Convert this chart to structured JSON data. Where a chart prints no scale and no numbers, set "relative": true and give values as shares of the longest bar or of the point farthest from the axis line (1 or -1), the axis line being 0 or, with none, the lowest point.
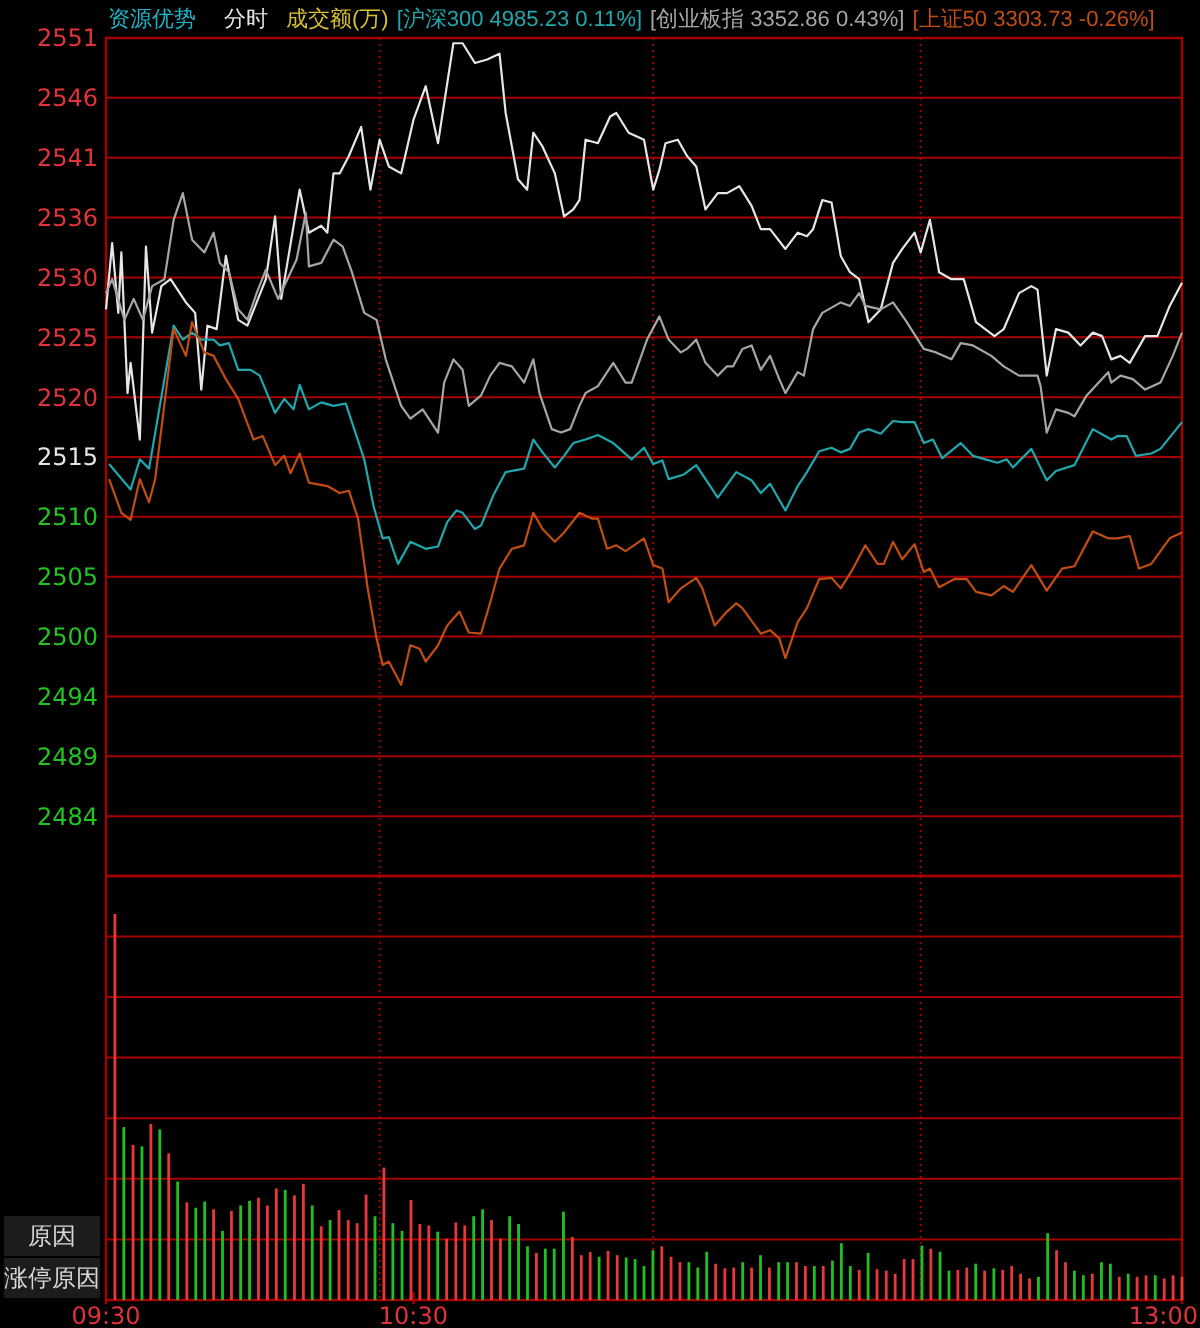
{
  "chart_data": [
    {
      "type": "line",
      "title": "资源优势",
      "subtitle": "分时",
      "annotations": [
        "成交额(万)"
      ],
      "legend": "top",
      "grid": "y",
      "tick_labels": "y",
      "xlim": [
        9.5,
        13
      ],
      "ylim": [
        2478.95,
        2551.05
      ],
      "yticks": [
        {
          "value": 2551.05,
          "label": "2551"
        },
        {
          "value": 2545.9,
          "label": "2546"
        },
        {
          "value": 2540.75,
          "label": "2541"
        },
        {
          "value": 2535.6,
          "label": "2536"
        },
        {
          "value": 2530.45,
          "label": "2530"
        },
        {
          "value": 2525.3,
          "label": "2525"
        },
        {
          "value": 2520.15,
          "label": "2520"
        },
        2515,
        {
          "value": 2509.85,
          "label": "2510"
        },
        {
          "value": 2504.7,
          "label": "2505"
        },
        {
          "value": 2499.55,
          "label": "2500"
        },
        {
          "value": 2494.4,
          "label": "2494"
        },
        {
          "value": 2489.25,
          "label": "2489"
        },
        {
          "value": 2484.1,
          "label": "2484"
        }
      ],
      "ref_lines": [
        {
          "axis": "x",
          "value": 10.39,
          "line_style": "dotted",
          "color": "#a00000"
        },
        {
          "axis": "x",
          "value": 11.28,
          "line_style": "dotted",
          "color": "#a00000"
        },
        {
          "axis": "x",
          "value": 12.15,
          "line_style": "dotted",
          "color": "#a00000"
        }
      ],
      "series": [
        {
          "color": "#e6e6e6",
          "x": [
            9.5,
            9.52,
            9.54,
            9.55,
            9.57,
            9.58,
            9.61,
            9.63,
            9.65,
            9.68,
            9.71,
            9.76,
            9.79,
            9.81,
            9.83,
            9.86,
            9.89,
            9.93,
            9.96,
            9.99,
            10.02,
            10.05,
            10.07,
            10.09,
            10.13,
            10.16,
            10.2,
            10.22,
            10.24,
            10.26,
            10.29,
            10.33,
            10.36,
            10.39,
            10.42,
            10.46,
            10.5,
            10.54,
            10.58,
            10.63,
            10.66,
            10.7,
            10.74,
            10.78,
            10.8,
            10.84,
            10.87,
            10.89,
            10.92,
            10.96,
            10.99,
            11.02,
            11.04,
            11.06,
            11.1,
            11.14,
            11.16,
            11.2,
            11.25,
            11.28,
            11.3,
            11.32,
            11.36,
            11.39,
            11.42,
            11.45,
            11.49,
            11.52,
            11.56,
            11.6,
            11.63,
            11.66,
            11.71,
            11.75,
            11.78,
            11.8,
            11.83,
            11.86,
            11.89,
            11.92,
            11.95,
            11.98,
            12.02,
            12.06,
            12.09,
            12.13,
            12.15,
            12.18,
            12.21,
            12.25,
            12.29,
            12.33,
            12.39,
            12.42,
            12.47,
            12.51,
            12.53,
            12.56,
            12.59,
            12.63,
            12.67,
            12.71,
            12.74,
            12.77,
            12.8,
            12.83,
            12.88,
            12.92,
            12.96,
            13
          ],
          "values": [
            2527.7,
            2533.4,
            2527.4,
            2532.6,
            2520.5,
            2523.1,
            2516.5,
            2533.1,
            2525.7,
            2529.7,
            2530.3,
            2528.3,
            2527.4,
            2520.8,
            2526.3,
            2526,
            2532.3,
            2526.8,
            2526.3,
            2528.3,
            2530.3,
            2535.7,
            2528.6,
            2531.7,
            2538,
            2534.3,
            2534.9,
            2534.3,
            2539.4,
            2539.4,
            2540.9,
            2543.4,
            2538,
            2542.3,
            2540,
            2539.4,
            2544,
            2546.9,
            2542,
            2550.6,
            2550.6,
            2548.9,
            2549.2,
            2549.7,
            2544.6,
            2538.9,
            2538,
            2542.9,
            2541.7,
            2539.4,
            2535.7,
            2536.3,
            2537.1,
            2542.3,
            2542,
            2544.3,
            2544.6,
            2542.9,
            2542.3,
            2538,
            2539.7,
            2542,
            2542.3,
            2540.9,
            2540,
            2536.3,
            2537.7,
            2537.7,
            2538.3,
            2536.6,
            2534.6,
            2534.6,
            2532.9,
            2534.3,
            2534,
            2534.6,
            2537.1,
            2536.9,
            2532.3,
            2530.9,
            2530.3,
            2526.6,
            2527.7,
            2531.7,
            2532.9,
            2534.3,
            2532.6,
            2535.4,
            2530.9,
            2530.3,
            2530.3,
            2526.6,
            2525.4,
            2526,
            2529.1,
            2529.7,
            2529.4,
            2522,
            2526,
            2525.7,
            2524.6,
            2525.7,
            2525.4,
            2523.4,
            2523.7,
            2523.1,
            2525.4,
            2525.4,
            2528,
            2530
          ]
        },
        {
          "name": "[沪深300 4985.23 0.11%]",
          "color": "#1fa8ad",
          "x": [
            9.51,
            9.58,
            9.61,
            9.64,
            9.72,
            9.75,
            9.78,
            9.81,
            9.85,
            9.87,
            9.9,
            9.93,
            9.97,
            10,
            10.05,
            10.08,
            10.11,
            10.13,
            10.16,
            10.2,
            10.24,
            10.28,
            10.34,
            10.37,
            10.4,
            10.42,
            10.45,
            10.49,
            10.54,
            10.58,
            10.61,
            10.64,
            10.66,
            10.7,
            10.72,
            10.76,
            10.8,
            10.86,
            10.89,
            10.92,
            10.96,
            10.99,
            11.02,
            11.06,
            11.1,
            11.15,
            11.21,
            11.25,
            11.28,
            11.31,
            11.33,
            11.38,
            11.42,
            11.49,
            11.55,
            11.6,
            11.63,
            11.66,
            11.71,
            11.75,
            11.78,
            11.82,
            11.86,
            11.89,
            11.92,
            11.95,
            11.98,
            12.02,
            12.06,
            12.09,
            12.13,
            12.16,
            12.19,
            12.22,
            12.28,
            12.32,
            12.36,
            12.4,
            12.43,
            12.45,
            12.51,
            12.56,
            12.59,
            12.65,
            12.71,
            12.77,
            12.79,
            12.82,
            12.85,
            12.9,
            12.93,
            13
          ],
          "values": [
            2514.4,
            2512.2,
            2514.8,
            2514,
            2526.3,
            2525.1,
            2525.7,
            2525.1,
            2525.1,
            2524.6,
            2524.8,
            2522.5,
            2522.5,
            2522,
            2518.8,
            2520,
            2519.1,
            2521.2,
            2519.1,
            2519.7,
            2519.4,
            2519.6,
            2514.8,
            2510.8,
            2508,
            2508.1,
            2505.8,
            2507.7,
            2507.1,
            2507.3,
            2509.4,
            2510.4,
            2510.2,
            2508.8,
            2509.1,
            2511.7,
            2513.7,
            2514,
            2516.5,
            2515.4,
            2514.1,
            2515.1,
            2516.2,
            2516.5,
            2516.9,
            2516.2,
            2514.8,
            2515.8,
            2514.4,
            2514.7,
            2513.1,
            2513.5,
            2514.3,
            2511.5,
            2513.7,
            2513,
            2511.9,
            2512.7,
            2510.4,
            2512.5,
            2513.7,
            2515.5,
            2515.8,
            2515.4,
            2515.7,
            2517.1,
            2517.4,
            2517,
            2518.1,
            2518,
            2518,
            2516.2,
            2516.5,
            2514.9,
            2516.2,
            2515.1,
            2514.8,
            2514.5,
            2514.8,
            2514.1,
            2515.7,
            2513,
            2513.8,
            2514.3,
            2517.4,
            2516.5,
            2516.8,
            2516.8,
            2515.1,
            2515.3,
            2515.7,
            2518
          ]
        },
        {
          "name": "[创业板指 3352.86 0.43%]",
          "color": "#a6a6a6",
          "x": [
            9.5,
            9.52,
            9.56,
            9.59,
            9.62,
            9.65,
            9.69,
            9.72,
            9.75,
            9.78,
            9.82,
            9.85,
            9.87,
            9.9,
            9.93,
            9.96,
            9.99,
            10.02,
            10.06,
            10.09,
            10.12,
            10.15,
            10.16,
            10.2,
            10.24,
            10.27,
            10.3,
            10.34,
            10.38,
            10.41,
            10.46,
            10.49,
            10.53,
            10.58,
            10.6,
            10.63,
            10.66,
            10.68,
            10.72,
            10.75,
            10.78,
            10.82,
            10.86,
            10.89,
            10.91,
            10.95,
            10.98,
            11.01,
            11.04,
            11.06,
            11.1,
            11.15,
            11.19,
            11.21,
            11.26,
            11.3,
            11.33,
            11.37,
            11.39,
            11.42,
            11.45,
            11.49,
            11.52,
            11.54,
            11.57,
            11.6,
            11.63,
            11.66,
            11.69,
            11.71,
            11.75,
            11.77,
            11.8,
            11.83,
            11.89,
            11.92,
            11.95,
            11.97,
            12.02,
            12.06,
            12.1,
            12.16,
            12.2,
            12.25,
            12.28,
            12.32,
            12.38,
            12.42,
            12.47,
            12.53,
            12.54,
            12.56,
            12.59,
            12.63,
            12.65,
            12.69,
            12.76,
            12.77,
            12.8,
            12.84,
            12.88,
            12.93,
            12.97,
            13
          ],
          "values": [
            2529.1,
            2530.3,
            2526.8,
            2528.6,
            2526.8,
            2529.7,
            2530.3,
            2535.4,
            2537.7,
            2533.7,
            2532.6,
            2534.3,
            2531.7,
            2530.9,
            2527.7,
            2526.8,
            2529.1,
            2531.1,
            2528.6,
            2530.3,
            2532,
            2536,
            2531.4,
            2531.7,
            2533.7,
            2533.1,
            2530.9,
            2527.4,
            2526.8,
            2523.4,
            2519.4,
            2518.3,
            2519.1,
            2517.1,
            2521.4,
            2523.4,
            2522.5,
            2519.4,
            2520.3,
            2522,
            2523.1,
            2522.8,
            2521.4,
            2523.4,
            2520.5,
            2517.4,
            2517.1,
            2517.4,
            2519.4,
            2520.5,
            2521.1,
            2523.1,
            2521.4,
            2521.4,
            2525.1,
            2527.1,
            2525.1,
            2524,
            2524.3,
            2525.1,
            2523.1,
            2522,
            2522.8,
            2522.8,
            2524.3,
            2524.6,
            2522.5,
            2523.7,
            2521.7,
            2520.5,
            2522.3,
            2522,
            2526,
            2527.4,
            2528.3,
            2528,
            2529.1,
            2528,
            2527.7,
            2528.3,
            2526.8,
            2524.3,
            2524,
            2523.4,
            2524.8,
            2524.6,
            2523.7,
            2522.8,
            2522,
            2522,
            2521.1,
            2517.1,
            2519.1,
            2518.8,
            2518.5,
            2520.3,
            2522.3,
            2521.4,
            2522,
            2521.7,
            2520.8,
            2521.4,
            2523.7,
            2525.7
          ]
        },
        {
          "name": "[上证50 3303.73 -0.26%]",
          "color": "#c24d12",
          "x": [
            9.51,
            9.55,
            9.58,
            9.61,
            9.64,
            9.66,
            9.72,
            9.76,
            9.78,
            9.82,
            9.85,
            9.89,
            9.93,
            9.98,
            10.01,
            10.05,
            10.08,
            10.1,
            10.13,
            10.16,
            10.22,
            10.26,
            10.29,
            10.32,
            10.35,
            10.38,
            10.4,
            10.42,
            10.46,
            10.49,
            10.52,
            10.54,
            10.58,
            10.61,
            10.65,
            10.68,
            10.72,
            10.75,
            10.78,
            10.82,
            10.86,
            10.89,
            10.92,
            10.96,
            10.99,
            11.04,
            11.08,
            11.1,
            11.13,
            11.16,
            11.19,
            11.25,
            11.28,
            11.31,
            11.33,
            11.37,
            11.42,
            11.44,
            11.48,
            11.52,
            11.55,
            11.57,
            11.63,
            11.66,
            11.69,
            11.71,
            11.75,
            11.78,
            11.82,
            11.86,
            11.89,
            11.93,
            11.97,
            12.01,
            12.03,
            12.06,
            12.09,
            12.13,
            12.16,
            12.18,
            12.21,
            12.26,
            12.3,
            12.33,
            12.38,
            12.42,
            12.45,
            12.51,
            12.56,
            12.61,
            12.65,
            12.71,
            12.76,
            12.79,
            12.83,
            12.86,
            12.9,
            12.96,
            13
          ],
          "values": [
            2513.1,
            2510.2,
            2509.6,
            2513.1,
            2511.1,
            2513.1,
            2526,
            2523.7,
            2526.6,
            2524,
            2523.7,
            2521.7,
            2520,
            2516.5,
            2516.8,
            2514.3,
            2515.1,
            2513.6,
            2515.3,
            2512.8,
            2512.5,
            2511.9,
            2512.1,
            2509.7,
            2503.9,
            2499.4,
            2497.1,
            2497.4,
            2495.4,
            2498.8,
            2498.5,
            2497.4,
            2498.8,
            2500.5,
            2501.7,
            2499.9,
            2499.8,
            2502.5,
            2505.4,
            2507.1,
            2507.4,
            2510.2,
            2508.8,
            2507.7,
            2508.5,
            2510.2,
            2509.7,
            2509.7,
            2507.1,
            2507.4,
            2506.9,
            2508,
            2505.7,
            2505.4,
            2502.5,
            2503.7,
            2504.6,
            2503.7,
            2500.5,
            2501.7,
            2502.4,
            2502,
            2499.8,
            2500.1,
            2499.4,
            2497.7,
            2500.8,
            2502,
            2504.5,
            2504.6,
            2503.7,
            2505.4,
            2507.4,
            2505.8,
            2505.8,
            2507.7,
            2506.2,
            2507.5,
            2505.1,
            2505.4,
            2503.8,
            2504.5,
            2504.5,
            2503.4,
            2503.1,
            2503.9,
            2503.4,
            2505.7,
            2503.5,
            2505.4,
            2505.6,
            2508.6,
            2508,
            2508,
            2508.2,
            2505.4,
            2505.8,
            2508,
            2508.5
          ]
        }
      ]
    },
    {
      "type": "bar",
      "relative": true,
      "tick_labels": "x",
      "annotations": [
        "原因",
        "涨停原因"
      ],
      "xlim": [
        9.5,
        13
      ],
      "xticks": [
        {
          "value": 9.5,
          "label": "09:30"
        },
        {
          "value": 10.5,
          "label": "10:30"
        },
        {
          "value": 13,
          "label": "13:00"
        }
      ],
      "ref_lines": [
        {
          "axis": "x",
          "value": 10.39,
          "line_style": "dotted",
          "color": "#a00000"
        },
        {
          "axis": "x",
          "value": 11.28,
          "line_style": "dotted",
          "color": "#a00000"
        },
        {
          "axis": "x",
          "value": 12.15,
          "line_style": "dotted",
          "color": "#a00000"
        },
        {
          "axis": "y",
          "value": 0.157,
          "color": "#a80000"
        },
        {
          "axis": "y",
          "value": 0.314,
          "color": "#a80000"
        },
        {
          "axis": "y",
          "value": 0.471,
          "color": "#a80000"
        },
        {
          "axis": "y",
          "value": 0.628,
          "color": "#a80000"
        },
        {
          "axis": "y",
          "value": 0.785,
          "color": "#a80000"
        },
        {
          "axis": "y",
          "value": 0.942,
          "color": "#a80000"
        }
      ],
      "x": [
        9.529,
        9.558,
        9.588,
        9.617,
        9.646,
        9.675,
        9.704,
        9.733,
        9.763,
        9.792,
        9.821,
        9.85,
        9.879,
        9.908,
        9.938,
        9.967,
        9.996,
        10.025,
        10.054,
        10.083,
        10.113,
        10.142,
        10.171,
        10.2,
        10.229,
        10.258,
        10.288,
        10.317,
        10.346,
        10.375,
        10.404,
        10.433,
        10.463,
        10.492,
        10.521,
        10.55,
        10.579,
        10.608,
        10.638,
        10.667,
        10.696,
        10.725,
        10.754,
        10.783,
        10.813,
        10.842,
        10.871,
        10.9,
        10.929,
        10.958,
        10.988,
        11.017,
        11.046,
        11.075,
        11.104,
        11.133,
        11.163,
        11.192,
        11.221,
        11.25,
        11.279,
        11.308,
        11.338,
        11.367,
        11.396,
        11.425,
        11.454,
        11.483,
        11.513,
        11.542,
        11.571,
        11.6,
        11.629,
        11.658,
        11.688,
        11.717,
        11.746,
        11.775,
        11.804,
        11.833,
        11.863,
        11.892,
        11.921,
        11.95,
        11.979,
        12.008,
        12.038,
        12.067,
        12.096,
        12.125,
        12.154,
        12.183,
        12.213,
        12.242,
        12.271,
        12.3,
        12.329,
        12.358,
        12.388,
        12.417,
        12.446,
        12.475,
        12.504,
        12.533,
        12.563,
        12.592,
        12.621,
        12.65,
        12.679,
        12.708,
        12.738,
        12.767,
        12.796,
        12.825,
        12.854,
        12.883,
        12.913,
        12.942,
        12.971,
        13
      ],
      "values": [
        1,
        0.448,
        0.402,
        0.398,
        0.456,
        0.442,
        0.38,
        0.307,
        0.253,
        0.239,
        0.255,
        0.235,
        0.179,
        0.231,
        0.245,
        0.257,
        0.265,
        0.245,
        0.289,
        0.285,
        0.271,
        0.301,
        0.245,
        0.191,
        0.207,
        0.233,
        0.207,
        0.199,
        0.273,
        0.217,
        0.343,
        0.199,
        0.179,
        0.259,
        0.197,
        0.193,
        0.177,
        0.159,
        0.201,
        0.193,
        0.217,
        0.235,
        0.207,
        0.159,
        0.217,
        0.197,
        0.139,
        0.122,
        0.133,
        0.133,
        0.229,
        0.163,
        0.116,
        0.124,
        0.112,
        0.127,
        0.116,
        0.11,
        0.106,
        0.088,
        0.129,
        0.139,
        0.112,
        0.098,
        0.098,
        0.084,
        0.125,
        0.094,
        0.082,
        0.084,
        0.098,
        0.084,
        0.116,
        0.084,
        0.098,
        0.098,
        0.098,
        0.088,
        0.088,
        0.088,
        0.102,
        0.147,
        0.088,
        0.078,
        0.122,
        0.08,
        0.076,
        0.068,
        0.106,
        0.106,
        0.141,
        0.133,
        0.125,
        0.076,
        0.078,
        0.084,
        0.094,
        0.076,
        0.082,
        0.078,
        0.088,
        0.068,
        0.056,
        0.06,
        0.173,
        0.129,
        0.098,
        0.076,
        0.064,
        0.068,
        0.098,
        0.094,
        0.06,
        0.068,
        0.06,
        0.064,
        0.064,
        0.056,
        0.064,
        0.06
      ],
      "colors": [
        "#e8383a",
        "#20c020",
        "#e8383a",
        "#20c020",
        "#e8383a",
        "#20c020",
        "#e8383a",
        "#20c020",
        "#e8383a",
        "#20c020",
        "#20c020",
        "#e8383a",
        "#20c020",
        "#e8383a",
        "#20c020",
        "#20c020",
        "#e8383a",
        "#e8383a",
        "#e8383a",
        "#20c020",
        "#e8383a",
        "#e8383a",
        "#20c020",
        "#e8383a",
        "#20c020",
        "#e8383a",
        "#e8383a",
        "#e8383a",
        "#e8383a",
        "#20c020",
        "#e8383a",
        "#20c020",
        "#20c020",
        "#e8383a",
        "#e8383a",
        "#e8383a",
        "#20c020",
        "#e8383a",
        "#e8383a",
        "#e8383a",
        "#20c020",
        "#20c020",
        "#e8383a",
        "#e8383a",
        "#20c020",
        "#20c020",
        "#20c020",
        "#e8383a",
        "#20c020",
        "#20c020",
        "#20c020",
        "#e8383a",
        "#e8383a",
        "#e8383a",
        "#20c020",
        "#e8383a",
        "#e8383a",
        "#20c020",
        "#20c020",
        "#20c020",
        "#20c020",
        "#e8383a",
        "#e8383a",
        "#e8383a",
        "#20c020",
        "#20c020",
        "#20c020",
        "#e8383a",
        "#e8383a",
        "#e8383a",
        "#20c020",
        "#e8383a",
        "#20c020",
        "#e8383a",
        "#20c020",
        "#20c020",
        "#e8383a",
        "#e8383a",
        "#20c020",
        "#e8383a",
        "#20c020",
        "#20c020",
        "#20c020",
        "#e8383a",
        "#20c020",
        "#e8383a",
        "#e8383a",
        "#e8383a",
        "#e8383a",
        "#e8383a",
        "#20c020",
        "#e8383a",
        "#20c020",
        "#20c020",
        "#e8383a",
        "#e8383a",
        "#20c020",
        "#e8383a",
        "#20c020",
        "#e8383a",
        "#e8383a",
        "#e8383a",
        "#e8383a",
        "#20c020",
        "#20c020",
        "#e8383a",
        "#e8383a",
        "#20c020",
        "#20c020",
        "#e8383a",
        "#20c020",
        "#20c020",
        "#e8383a",
        "#20c020",
        "#e8383a",
        "#e8383a",
        "#20c020",
        "#e8383a",
        "#e8383a",
        "#e8383a"
      ]
    }
  ]
}
